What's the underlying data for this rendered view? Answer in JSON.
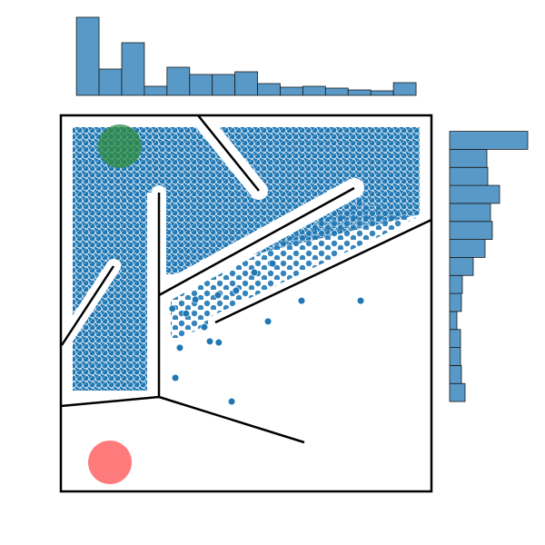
{
  "chart_data": {
    "type": "scatter",
    "xlim": [
      0,
      100
    ],
    "ylim": [
      0,
      100
    ],
    "color": "#1f77b4",
    "x": [
      64.95,
      80.9,
      55.9,
      42.6,
      40.2,
      32.1,
      30.9,
      46.1,
      30.1,
      33.8,
      36.3,
      42.4,
      47.3,
      52.2,
      57.1,
      38.7
    ],
    "values": [
      50.7,
      50.7,
      45.2,
      39.6,
      39.9,
      38.2,
      30.2,
      23.9,
      48.6,
      47.3,
      51.0,
      52.2,
      53.4,
      58.2,
      60.6,
      43.7
    ],
    "hist_color": "#5899c8",
    "x_hist": {
      "bins": [
        4.2,
        10.31,
        16.42,
        22.53,
        28.64,
        34.75,
        40.86,
        46.97,
        53.08,
        59.19,
        65.3,
        71.41,
        77.52,
        83.63,
        89.74,
        95.85
      ],
      "counts": [
        86,
        29,
        58,
        10,
        31,
        23,
        23,
        26,
        13,
        9,
        10,
        8,
        6,
        5,
        14
      ]
    },
    "y_hist": {
      "bins": [
        23.9,
        28.69,
        33.48,
        38.27,
        43.06,
        47.85,
        52.64,
        57.43,
        62.22,
        67.01,
        71.8,
        76.59,
        81.38,
        86.17,
        90.96,
        95.75
      ],
      "counts": [
        17,
        13,
        12,
        12,
        8,
        13,
        14,
        26,
        39,
        47,
        45,
        55,
        42,
        41,
        86
      ]
    }
  }
}
